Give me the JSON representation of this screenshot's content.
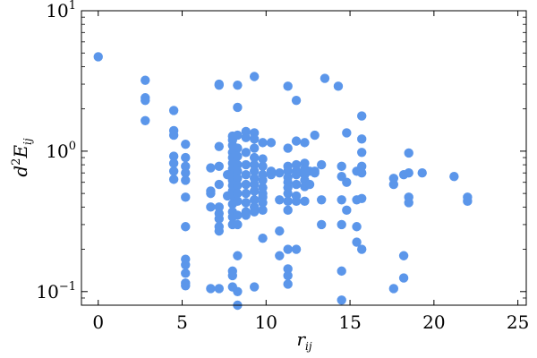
{
  "chart_data": {
    "type": "scatter",
    "xlabel": "r_ij",
    "ylabel": "d^2 E_ij",
    "xlim": [
      -1,
      25.5
    ],
    "ylim": [
      0.08,
      10
    ],
    "yscale": "log",
    "x_ticks": [
      0,
      5,
      10,
      15,
      20,
      25
    ],
    "y_ticks": [
      {
        "value": 0.1,
        "base": "10",
        "exp": "−1"
      },
      {
        "value": 1,
        "base": "10",
        "exp": "0"
      },
      {
        "value": 10,
        "base": "10",
        "exp": "1"
      }
    ],
    "grid": false,
    "marker_color": "#5b96ea",
    "series": [
      {
        "points": [
          [
            0,
            4.7
          ],
          [
            2.8,
            3.2
          ],
          [
            2.8,
            2.4
          ],
          [
            2.8,
            2.3
          ],
          [
            2.8,
            1.65
          ],
          [
            4.5,
            1.95
          ],
          [
            4.5,
            1.4
          ],
          [
            4.5,
            1.3
          ],
          [
            4.5,
            0.92
          ],
          [
            4.5,
            0.82
          ],
          [
            4.5,
            0.72
          ],
          [
            4.5,
            0.63
          ],
          [
            5.2,
            1.12
          ],
          [
            5.2,
            0.9
          ],
          [
            5.2,
            0.78
          ],
          [
            5.2,
            0.7
          ],
          [
            5.2,
            0.62
          ],
          [
            5.2,
            0.47
          ],
          [
            5.2,
            0.29
          ],
          [
            5.2,
            0.17
          ],
          [
            5.2,
            0.155
          ],
          [
            5.2,
            0.135
          ],
          [
            5.2,
            0.115
          ],
          [
            5.2,
            0.11
          ],
          [
            6.7,
            0.76
          ],
          [
            6.7,
            0.52
          ],
          [
            6.7,
            0.5
          ],
          [
            6.7,
            0.4
          ],
          [
            6.7,
            0.105
          ],
          [
            7.2,
            3.0
          ],
          [
            7.2,
            2.95
          ],
          [
            7.2,
            1.08
          ],
          [
            7.2,
            0.78
          ],
          [
            7.2,
            0.58
          ],
          [
            7.2,
            0.4
          ],
          [
            7.2,
            0.36
          ],
          [
            7.2,
            0.33
          ],
          [
            7.2,
            0.29
          ],
          [
            7.2,
            0.27
          ],
          [
            7.2,
            0.105
          ],
          [
            7.7,
            0.68
          ],
          [
            7.7,
            0.48
          ],
          [
            8.0,
            1.28
          ],
          [
            8.0,
            1.2
          ],
          [
            8.0,
            1.1
          ],
          [
            8.0,
            0.98
          ],
          [
            8.0,
            0.9
          ],
          [
            8.0,
            0.82
          ],
          [
            8.0,
            0.75
          ],
          [
            8.0,
            0.68
          ],
          [
            8.0,
            0.62
          ],
          [
            8.0,
            0.57
          ],
          [
            8.0,
            0.52
          ],
          [
            8.0,
            0.48
          ],
          [
            8.0,
            0.42
          ],
          [
            8.0,
            0.37
          ],
          [
            8.0,
            0.34
          ],
          [
            8.0,
            0.3
          ],
          [
            8.0,
            0.14
          ],
          [
            8.0,
            0.13
          ],
          [
            8.0,
            0.108
          ],
          [
            8.3,
            2.95
          ],
          [
            8.3,
            2.05
          ],
          [
            8.3,
            1.3
          ],
          [
            8.3,
            1.05
          ],
          [
            8.3,
            0.92
          ],
          [
            8.3,
            0.8
          ],
          [
            8.3,
            0.72
          ],
          [
            8.3,
            0.64
          ],
          [
            8.3,
            0.57
          ],
          [
            8.3,
            0.5
          ],
          [
            8.3,
            0.44
          ],
          [
            8.3,
            0.35
          ],
          [
            8.3,
            0.3
          ],
          [
            8.3,
            0.18
          ],
          [
            8.3,
            0.1
          ],
          [
            8.3,
            0.08
          ],
          [
            8.8,
            1.38
          ],
          [
            8.8,
            1.25
          ],
          [
            8.8,
            0.98
          ],
          [
            8.8,
            0.8
          ],
          [
            8.8,
            0.68
          ],
          [
            8.8,
            0.58
          ],
          [
            8.8,
            0.5
          ],
          [
            8.8,
            0.43
          ],
          [
            8.8,
            0.37
          ],
          [
            8.8,
            0.35
          ],
          [
            9.3,
            3.4
          ],
          [
            9.3,
            1.35
          ],
          [
            9.3,
            1.22
          ],
          [
            9.3,
            1.05
          ],
          [
            9.3,
            0.9
          ],
          [
            9.3,
            0.8
          ],
          [
            9.3,
            0.72
          ],
          [
            9.3,
            0.64
          ],
          [
            9.3,
            0.58
          ],
          [
            9.3,
            0.52
          ],
          [
            9.3,
            0.45
          ],
          [
            9.3,
            0.4
          ],
          [
            9.3,
            0.37
          ],
          [
            9.3,
            0.108
          ],
          [
            9.8,
            1.15
          ],
          [
            9.8,
            0.88
          ],
          [
            9.8,
            0.78
          ],
          [
            9.8,
            0.68
          ],
          [
            9.8,
            0.62
          ],
          [
            9.8,
            0.55
          ],
          [
            9.8,
            0.5
          ],
          [
            9.8,
            0.47
          ],
          [
            9.8,
            0.43
          ],
          [
            9.8,
            0.38
          ],
          [
            9.8,
            0.24
          ],
          [
            10.3,
            1.15
          ],
          [
            10.3,
            0.72
          ],
          [
            10.3,
            0.68
          ],
          [
            10.8,
            0.7
          ],
          [
            10.8,
            0.45
          ],
          [
            10.8,
            0.27
          ],
          [
            10.8,
            0.18
          ],
          [
            11.3,
            2.9
          ],
          [
            11.3,
            1.05
          ],
          [
            11.3,
            0.78
          ],
          [
            11.3,
            0.72
          ],
          [
            11.3,
            0.65
          ],
          [
            11.3,
            0.6
          ],
          [
            11.3,
            0.55
          ],
          [
            11.3,
            0.5
          ],
          [
            11.3,
            0.44
          ],
          [
            11.3,
            0.38
          ],
          [
            11.3,
            0.2
          ],
          [
            11.3,
            0.145
          ],
          [
            11.3,
            0.13
          ],
          [
            11.3,
            0.113
          ],
          [
            11.8,
            2.3
          ],
          [
            11.8,
            1.18
          ],
          [
            11.8,
            0.8
          ],
          [
            11.8,
            0.72
          ],
          [
            11.8,
            0.68
          ],
          [
            11.8,
            0.58
          ],
          [
            11.8,
            0.48
          ],
          [
            11.8,
            0.44
          ],
          [
            11.8,
            0.2
          ],
          [
            12.3,
            1.15
          ],
          [
            12.3,
            0.82
          ],
          [
            12.3,
            0.75
          ],
          [
            12.3,
            0.7
          ],
          [
            12.3,
            0.68
          ],
          [
            12.3,
            0.62
          ],
          [
            12.3,
            0.56
          ],
          [
            12.3,
            0.44
          ],
          [
            12.6,
            0.72
          ],
          [
            12.6,
            0.58
          ],
          [
            12.9,
            1.3
          ],
          [
            12.9,
            0.72
          ],
          [
            12.9,
            0.7
          ],
          [
            13.3,
            0.8
          ],
          [
            13.3,
            0.45
          ],
          [
            13.3,
            0.3
          ],
          [
            13.5,
            3.3
          ],
          [
            14.3,
            2.9
          ],
          [
            14.5,
            0.78
          ],
          [
            14.5,
            0.66
          ],
          [
            14.5,
            0.45
          ],
          [
            14.5,
            0.3
          ],
          [
            14.5,
            0.14
          ],
          [
            14.5,
            0.087
          ],
          [
            14.8,
            1.35
          ],
          [
            14.8,
            0.6
          ],
          [
            14.8,
            0.38
          ],
          [
            15.4,
            0.72
          ],
          [
            15.4,
            0.45
          ],
          [
            15.4,
            0.29
          ],
          [
            15.4,
            0.225
          ],
          [
            15.7,
            1.78
          ],
          [
            15.7,
            1.22
          ],
          [
            15.7,
            0.98
          ],
          [
            15.7,
            0.78
          ],
          [
            15.7,
            0.7
          ],
          [
            15.7,
            0.46
          ],
          [
            15.7,
            0.2
          ],
          [
            17.6,
            0.64
          ],
          [
            17.6,
            0.58
          ],
          [
            17.6,
            0.105
          ],
          [
            18.2,
            0.68
          ],
          [
            18.2,
            0.18
          ],
          [
            18.2,
            0.125
          ],
          [
            18.5,
            0.97
          ],
          [
            18.5,
            0.7
          ],
          [
            18.5,
            0.47
          ],
          [
            18.5,
            0.43
          ],
          [
            19.3,
            0.7
          ],
          [
            21.2,
            0.66
          ],
          [
            22.0,
            0.47
          ],
          [
            22.0,
            0.44
          ]
        ]
      }
    ]
  }
}
